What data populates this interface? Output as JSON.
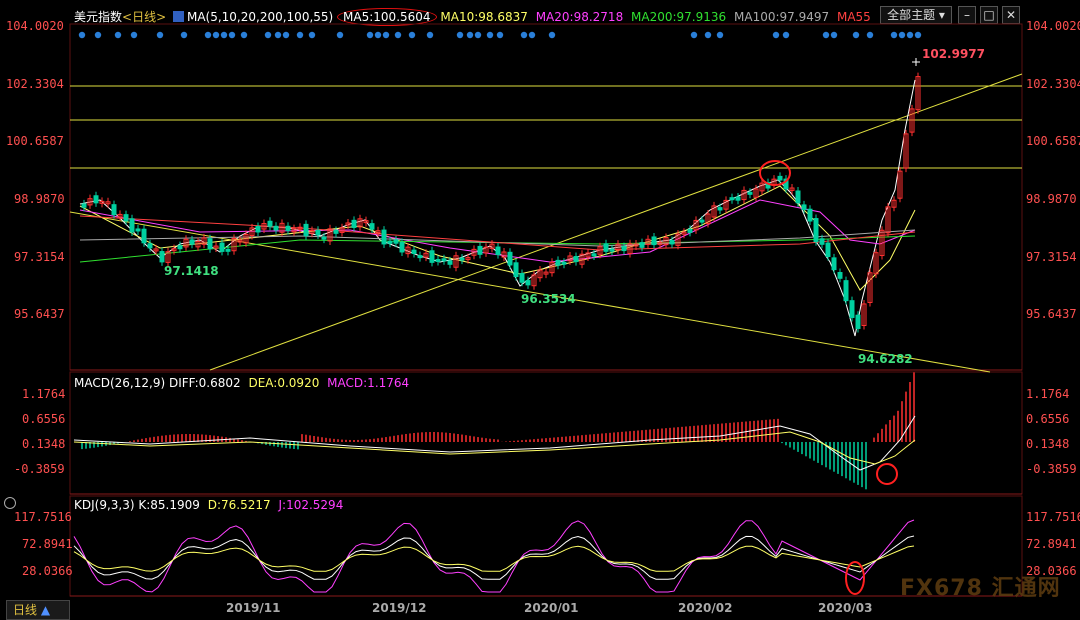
{
  "main_header": {
    "instrument": "美元指数",
    "period": "<日线>",
    "ma_title": "MA(5,10,20,200,100,55)",
    "ma5": "MA5:100.5604",
    "ma10": "MA10:98.6837",
    "ma20": "MA20:98.2718",
    "ma200": "MA200:97.9136",
    "ma100": "MA100:97.9497",
    "ma55": "MA55"
  },
  "theme_select": "全部主题",
  "price_axis_left": [
    "104.0020",
    "102.3304",
    "100.6587",
    "98.9870",
    "97.3154",
    "95.6437"
  ],
  "price_axis_right": [
    "104.0020",
    "102.3304",
    "100.6587",
    "98.9870",
    "97.3154",
    "95.6437"
  ],
  "price_labels": {
    "high": "102.9977",
    "low_a": "97.1418",
    "low_b": "96.3534",
    "low_c": "94.6282"
  },
  "macd_header": {
    "title": "MACD(26,12,9)",
    "diff": "DIFF:0.6802",
    "dea": "DEA:0.0920",
    "macd": "MACD:1.1764"
  },
  "macd_axis_left": [
    "1.1764",
    "0.6556",
    "0.1348",
    "-0.3859"
  ],
  "macd_axis_right": [
    "1.1764",
    "0.6556",
    "0.1348",
    "-0.3859"
  ],
  "kdj_header": {
    "title": "KDJ(9,3,3)",
    "k": "K:85.1909",
    "d": "D:76.5217",
    "j": "J:102.5294"
  },
  "kdj_axis_left": [
    "117.7516",
    "72.8941",
    "28.0366"
  ],
  "kdj_axis_right": [
    "117.7516",
    "72.8941",
    "28.0366"
  ],
  "dates": [
    "2019/11",
    "2019/12",
    "2020/01",
    "2020/02",
    "2020/03"
  ],
  "period_tab": "日线",
  "watermark": "FX678 汇通网",
  "colors": {
    "up": "#ff3030",
    "down": "#00d0a0",
    "ma5": "#ffffff",
    "ma10": "#ffff66",
    "ma20": "#ff40ff",
    "ma200": "#30e030",
    "ma100": "#aaaaaa",
    "ma55": "#ff4040",
    "trend": "#ffff33",
    "marker": "#ff2020",
    "dots": "#2a7fd8"
  }
}
